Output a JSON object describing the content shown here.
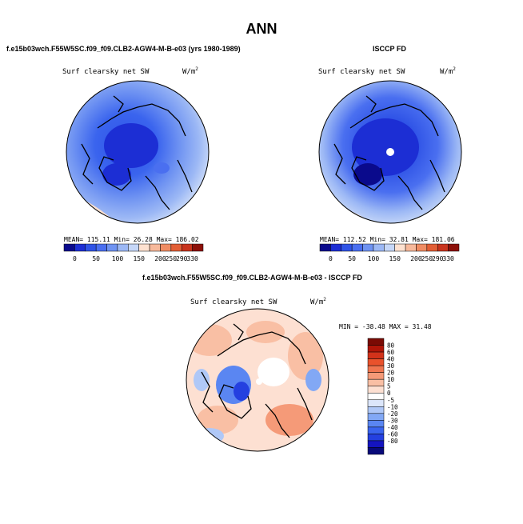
{
  "title": "ANN",
  "colors": {
    "clearsky_scale": [
      "#0a0a8c",
      "#1c2ed4",
      "#2f53e6",
      "#4a6ff0",
      "#6f93f2",
      "#9cb8f5",
      "#c6d7f8",
      "#fde1d0",
      "#f7b99b",
      "#f08c63",
      "#e25e35",
      "#c8341d",
      "#8c1009"
    ],
    "diff_scale": [
      "#080a7a",
      "#1414c0",
      "#2440e0",
      "#3a64ee",
      "#5a86f2",
      "#82a8f5",
      "#b0c8f7",
      "#dce6fa",
      "#ffffff",
      "#fde0d2",
      "#f9bfa4",
      "#f59a78",
      "#f07650",
      "#e9522c",
      "#d2321a",
      "#b01508",
      "#7a0a04"
    ]
  },
  "panels": [
    {
      "id": "model",
      "title": "f.e15b03wch.F55W5SC.f09_f09.CLB2-AGW4-M-B-e03 (yrs 1980-1989)",
      "variable": "Surf clearsky net SW",
      "units": "W/m",
      "units_sup": "2",
      "stats_text": "MEAN= 115.11   Min=  26.28   Max= 186.02"
    },
    {
      "id": "obs",
      "title": "ISCCP FD",
      "variable": "Surf clearsky net SW",
      "units": "W/m",
      "units_sup": "2",
      "stats_text": "MEAN= 112.52   Min=  32.81   Max= 181.06"
    },
    {
      "id": "diff",
      "title": "f.e15b03wch.F55W5SC.f09_f09.CLB2-AGW4-M-B-e03 - ISCCP FD",
      "variable": "Surf clearsky net SW",
      "units": "W/m",
      "units_sup": "2",
      "stats_text": "MIN = -38.48 MAX =  31.48"
    }
  ],
  "chart_data": [
    {
      "type": "heatmap",
      "projection": "north polar stereographic",
      "title": "f.e15b03wch.F55W5SC.f09_f09.CLB2-AGW4-M-B-e03 (yrs 1980-1989)",
      "variable": "Surf clearsky net SW",
      "units": "W/m2",
      "mean": 115.11,
      "min": 26.28,
      "max": 186.02,
      "colorbar_ticks": [
        "0",
        "50",
        "100",
        "150",
        "200",
        "250",
        "290",
        "330"
      ],
      "colorbar_levels": [
        0,
        25,
        50,
        75,
        100,
        125,
        150,
        175,
        200,
        225,
        250,
        290,
        330
      ]
    },
    {
      "type": "heatmap",
      "projection": "north polar stereographic",
      "title": "ISCCP FD",
      "variable": "Surf clearsky net SW",
      "units": "W/m2",
      "mean": 112.52,
      "min": 32.81,
      "max": 181.06,
      "colorbar_ticks": [
        "0",
        "50",
        "100",
        "150",
        "200",
        "250",
        "290",
        "330"
      ],
      "colorbar_levels": [
        0,
        25,
        50,
        75,
        100,
        125,
        150,
        175,
        200,
        225,
        250,
        290,
        330
      ]
    },
    {
      "type": "heatmap",
      "projection": "north polar stereographic",
      "title": "f.e15b03wch.F55W5SC.f09_f09.CLB2-AGW4-M-B-e03 - ISCCP FD",
      "variable": "Surf clearsky net SW",
      "units": "W/m2",
      "min": -38.48,
      "max": 31.48,
      "colorbar_ticks": [
        "80",
        "60",
        "40",
        "30",
        "20",
        "10",
        "5",
        "0",
        "-5",
        "-10",
        "-20",
        "-30",
        "-40",
        "-60",
        "-80"
      ],
      "colorbar_orientation": "vertical"
    }
  ]
}
